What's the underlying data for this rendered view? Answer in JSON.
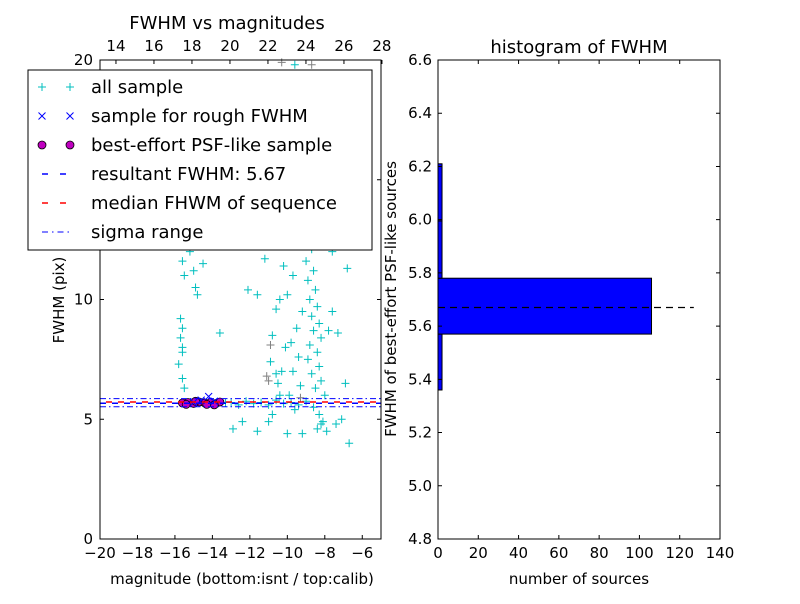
{
  "chart_data": [
    {
      "type": "scatter",
      "title": "FWHM vs magnitudes",
      "xlabel": "magnitude (bottom:isnt / top:calib)",
      "ylabel": "FWHM (pix)",
      "xlim": [
        -20,
        -5
      ],
      "ylim": [
        0,
        20
      ],
      "xticks": [
        "−20",
        "−18",
        "−16",
        "−14",
        "−12",
        "−10",
        "−8",
        "−6"
      ],
      "xtick_values": [
        -20,
        -18,
        -16,
        -14,
        -12,
        -10,
        -8,
        -6
      ],
      "yticks": [
        "0",
        "5",
        "10",
        "15",
        "20"
      ],
      "ytick_values": [
        0,
        5,
        10,
        15,
        20
      ],
      "top_xlim": [
        13.16,
        27.95
      ],
      "top_xticks": [
        "14",
        "16",
        "18",
        "20",
        "22",
        "24",
        "26",
        "28"
      ],
      "top_xtick_values": [
        14,
        16,
        18,
        20,
        22,
        24,
        26,
        28
      ],
      "legend": {
        "placement": "top-left",
        "entries": [
          {
            "label": "all sample",
            "marker": "+",
            "color": "#00bfbf"
          },
          {
            "label": "sample for rough FWHM",
            "marker": "x",
            "color": "#0000ff"
          },
          {
            "label": "best-effort PSF-like sample",
            "marker": "o",
            "color": "#bf00bf"
          },
          {
            "label": "resultant FWHM: 5.67",
            "marker": "dashed",
            "color": "#0000ff"
          },
          {
            "label": "median FHWM of sequence",
            "marker": "dashed",
            "color": "#ff0000"
          },
          {
            "label": "sigma range",
            "marker": "dashdot",
            "color": "#0000ff"
          }
        ]
      },
      "resultant_fwhm": 5.67,
      "median_fwhm": 5.72,
      "sigma_range": [
        5.52,
        5.86
      ],
      "series": {
        "all_sample": [
          [
            -15.6,
            11.6
          ],
          [
            -15.5,
            11.0
          ],
          [
            -15.2,
            12.0
          ],
          [
            -15.0,
            11.2
          ],
          [
            -14.9,
            10.5
          ],
          [
            -14.6,
            12.3
          ],
          [
            -14.8,
            10.2
          ],
          [
            -14.5,
            11.5
          ],
          [
            -15.7,
            9.2
          ],
          [
            -15.6,
            8.8
          ],
          [
            -15.7,
            8.4
          ],
          [
            -15.6,
            8.0
          ],
          [
            -15.8,
            7.3
          ],
          [
            -15.6,
            7.8
          ],
          [
            -15.6,
            6.7
          ],
          [
            -15.5,
            6.3
          ],
          [
            -13.6,
            8.6
          ],
          [
            -12.1,
            10.4
          ],
          [
            -11.2,
            11.7
          ],
          [
            -11.6,
            10.2
          ],
          [
            -10.7,
            13.3
          ],
          [
            -10.9,
            12.5
          ],
          [
            -10.4,
            10.0
          ],
          [
            -10.6,
            9.6
          ],
          [
            -10.2,
            11.4
          ],
          [
            -10.8,
            8.5
          ],
          [
            -10.1,
            8.0
          ],
          [
            -10.3,
            7.0
          ],
          [
            -10.6,
            6.9
          ],
          [
            -10.5,
            6.5
          ],
          [
            -10.9,
            7.4
          ],
          [
            -9.6,
            19.8
          ],
          [
            -9.4,
            18.5
          ],
          [
            -9.5,
            17.0
          ],
          [
            -9.2,
            16.2
          ],
          [
            -9.0,
            15.4
          ],
          [
            -8.9,
            14.3
          ],
          [
            -9.3,
            13.8
          ],
          [
            -8.8,
            13.2
          ],
          [
            -9.1,
            12.6
          ],
          [
            -8.7,
            12.1
          ],
          [
            -9.0,
            11.6
          ],
          [
            -8.6,
            11.2
          ],
          [
            -8.9,
            10.8
          ],
          [
            -8.5,
            10.4
          ],
          [
            -8.8,
            10.0
          ],
          [
            -8.4,
            9.7
          ],
          [
            -8.7,
            9.3
          ],
          [
            -8.3,
            9.0
          ],
          [
            -8.6,
            8.7
          ],
          [
            -8.2,
            8.4
          ],
          [
            -8.8,
            8.1
          ],
          [
            -8.4,
            7.8
          ],
          [
            -8.9,
            7.5
          ],
          [
            -8.3,
            7.2
          ],
          [
            -8.7,
            6.9
          ],
          [
            -8.2,
            6.6
          ],
          [
            -8.5,
            6.3
          ],
          [
            -8.0,
            6.0
          ],
          [
            -8.6,
            5.5
          ],
          [
            -8.3,
            5.2
          ],
          [
            -8.1,
            4.9
          ],
          [
            -8.4,
            4.6
          ],
          [
            -7.9,
            4.5
          ],
          [
            -8.2,
            4.8
          ],
          [
            -9.2,
            9.5
          ],
          [
            -9.5,
            8.8
          ],
          [
            -9.8,
            8.2
          ],
          [
            -9.4,
            7.6
          ],
          [
            -9.7,
            7.0
          ],
          [
            -9.3,
            6.4
          ],
          [
            -9.9,
            6.0
          ],
          [
            -9.6,
            12.8
          ],
          [
            -9.9,
            14.5
          ],
          [
            -9.7,
            11.0
          ],
          [
            -10.0,
            10.2
          ],
          [
            -7.8,
            8.7
          ],
          [
            -7.6,
            9.5
          ],
          [
            -7.3,
            8.6
          ],
          [
            -6.9,
            6.5
          ],
          [
            -7.1,
            5.0
          ],
          [
            -7.4,
            4.8
          ],
          [
            -6.7,
            4.0
          ],
          [
            -7.6,
            12.0
          ],
          [
            -6.8,
            11.3
          ],
          [
            -13.0,
            5.7
          ],
          [
            -12.6,
            5.6
          ],
          [
            -12.2,
            5.75
          ],
          [
            -11.8,
            5.65
          ],
          [
            -11.4,
            5.7
          ],
          [
            -11.0,
            5.6
          ],
          [
            -10.6,
            5.8
          ],
          [
            -10.2,
            5.65
          ],
          [
            -9.8,
            5.7
          ],
          [
            -9.4,
            5.6
          ],
          [
            -9.0,
            5.75
          ],
          [
            -13.3,
            5.7
          ],
          [
            -12.4,
            4.9
          ],
          [
            -11.6,
            4.5
          ],
          [
            -10.8,
            5.2
          ],
          [
            -10.0,
            4.4
          ],
          [
            -9.2,
            4.4
          ],
          [
            -12.9,
            4.6
          ],
          [
            -11.0,
            4.9
          ],
          [
            -10.4,
            6.0
          ],
          [
            -9.6,
            5.4
          ]
        ],
        "calibrated_sample": [
          [
            -11.1,
            6.8
          ],
          [
            -10.9,
            8.1
          ],
          [
            -9.8,
            17.6
          ],
          [
            -8.7,
            19.8
          ],
          [
            -10.3,
            19.9
          ],
          [
            -11.0,
            6.6
          ],
          [
            -9.3,
            5.9
          ]
        ],
        "rough_sample": [
          [
            -14.2,
            5.95
          ],
          [
            -14.6,
            5.8
          ],
          [
            -15.0,
            5.7
          ],
          [
            -13.9,
            5.75
          ]
        ],
        "best_effort": [
          [
            -15.6,
            5.68
          ],
          [
            -15.3,
            5.7
          ],
          [
            -15.0,
            5.66
          ],
          [
            -14.7,
            5.72
          ],
          [
            -14.4,
            5.68
          ],
          [
            -14.1,
            5.7
          ],
          [
            -13.8,
            5.66
          ],
          [
            -13.6,
            5.72
          ],
          [
            -15.4,
            5.62
          ],
          [
            -14.9,
            5.75
          ],
          [
            -14.3,
            5.62
          ],
          [
            -13.9,
            5.6
          ]
        ]
      }
    },
    {
      "type": "bar",
      "orientation": "horizontal",
      "title": "histogram of FWHM",
      "xlabel": "number of sources",
      "ylabel": "FWHM of best-effort PSF-like sources",
      "xlim": [
        0,
        140
      ],
      "ylim": [
        4.8,
        6.6
      ],
      "xticks": [
        "0",
        "20",
        "40",
        "60",
        "80",
        "100",
        "120",
        "140"
      ],
      "xtick_values": [
        0,
        20,
        40,
        60,
        80,
        100,
        120,
        140
      ],
      "yticks": [
        "4.8",
        "5.0",
        "5.2",
        "5.4",
        "5.6",
        "5.8",
        "6.0",
        "6.2",
        "6.4",
        "6.6"
      ],
      "ytick_values": [
        4.8,
        5.0,
        5.2,
        5.4,
        5.6,
        5.8,
        6.0,
        6.2,
        6.4,
        6.6
      ],
      "bins": [
        [
          5.36,
          5.57
        ],
        [
          5.57,
          5.78
        ],
        [
          5.78,
          5.995
        ],
        [
          5.995,
          6.21
        ]
      ],
      "values": [
        2,
        106,
        2,
        2
      ],
      "bar_color": "#0000ff",
      "reference_line": {
        "value": 5.67,
        "extent": 127
      }
    }
  ]
}
